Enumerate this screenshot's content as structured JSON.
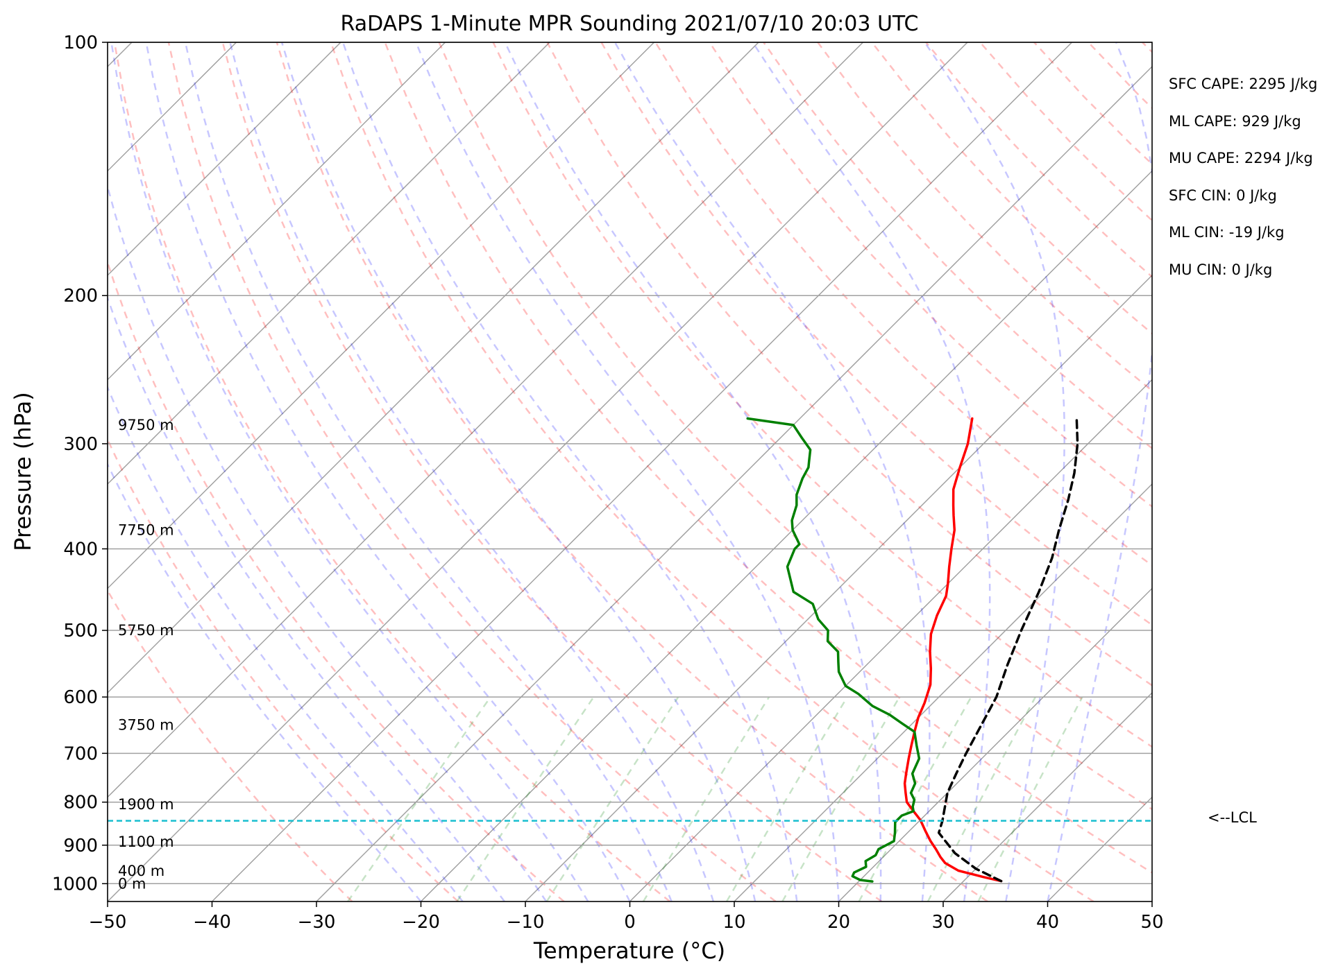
{
  "chart_data": {
    "type": "line",
    "title": "RaDAPS 1-Minute MPR Sounding 2021/07/10 20:03 UTC",
    "xlabel": "Temperature (°C)",
    "ylabel": "Pressure (hPa)",
    "xlim": [
      -50,
      50
    ],
    "ylim": [
      1050,
      100
    ],
    "y_scale": "log",
    "skew": "skew-T log-p",
    "grid": true,
    "x_ticks": [
      -50,
      -40,
      -30,
      -20,
      -10,
      0,
      10,
      20,
      30,
      40,
      50
    ],
    "x_tick_labels": [
      "−50",
      "−40",
      "−30",
      "−20",
      "−10",
      "0",
      "10",
      "20",
      "30",
      "40",
      "50"
    ],
    "y_ticks": [
      100,
      200,
      300,
      400,
      500,
      600,
      700,
      800,
      900,
      1000
    ],
    "y_tick_labels": [
      "100",
      "200",
      "300",
      "400",
      "500",
      "600",
      "700",
      "800",
      "900",
      "1000"
    ],
    "colors": {
      "temperature": "#ff0000",
      "dewpoint": "#008000",
      "parcel": "#000000",
      "lcl": "#17becf",
      "dry_adiabat": "#ff0000",
      "moist_adiabat": "#0000ff",
      "mixing_ratio": "#008000",
      "isotherm": "#808080"
    },
    "series": [
      {
        "key": "temperature",
        "x": [
          33.6,
          31.5,
          28.5,
          26.5,
          25.5,
          24.3,
          23.0,
          21.5,
          20.0,
          18.5,
          17.0,
          16.0,
          15.0,
          14.2,
          13.0,
          12.0,
          11.0,
          10.0,
          9.2,
          8.0,
          6.5,
          4.8,
          3.2,
          2.0,
          1.0,
          0.0,
          -1.5,
          -3.0,
          -4.5,
          -6.0,
          -7.0,
          -8.5,
          -10.0,
          -11.5,
          -13.5
        ],
        "y": [
          993,
          982,
          965,
          945,
          930,
          910,
          890,
          865,
          840,
          820,
          800,
          780,
          760,
          740,
          710,
          685,
          660,
          635,
          610,
          580,
          555,
          530,
          505,
          480,
          455,
          440,
          420,
          400,
          380,
          365,
          355,
          340,
          320,
          300,
          280
        ]
      },
      {
        "key": "dewpoint",
        "x": [
          21.3,
          20.0,
          18.9,
          18.7,
          19.3,
          18.7,
          19.1,
          18.8,
          19.5,
          18.8,
          17.8,
          17.8,
          18.5,
          18.0,
          17.5,
          16.5,
          16.0,
          14.8,
          14.0,
          12.5,
          11.0,
          9.0,
          7.0,
          4.5,
          2.0,
          0.0,
          -2.0,
          -3.0,
          -4.0,
          -6.0,
          -7.0,
          -9.0,
          -11.0,
          -14.0,
          -17.0,
          -18.0,
          -18.0,
          -20.0,
          -21.0,
          -22.0,
          -23.0,
          -24.0,
          -24.5,
          -25.0,
          -26.0,
          -28.0,
          -30.0,
          -35.0
        ],
        "y": [
          994,
          990,
          980,
          970,
          955,
          940,
          925,
          910,
          890,
          870,
          845,
          830,
          820,
          810,
          795,
          780,
          760,
          740,
          710,
          685,
          660,
          645,
          630,
          615,
          595,
          582,
          560,
          545,
          530,
          515,
          500,
          485,
          465,
          450,
          420,
          400,
          395,
          380,
          370,
          355,
          345,
          330,
          320,
          315,
          305,
          295,
          285,
          280
        ]
      },
      {
        "key": "parcel",
        "x": [
          33.6,
          30.0,
          26.5,
          23.0,
          22.2,
          20.0,
          19.0,
          18.0,
          16.8,
          15.5,
          13.5,
          11.5,
          9.5,
          7.5,
          5.5,
          3.5,
          1.5,
          -1.0,
          -3.5
        ],
        "y": [
          993,
          960,
          920,
          870,
          842,
          780,
          740,
          700,
          650,
          600,
          550,
          500,
          450,
          410,
          380,
          350,
          325,
          300,
          280
        ]
      }
    ],
    "lcl": {
      "pressure": 842,
      "label": "<--LCL"
    },
    "height_labels": [
      {
        "text": "9750 m",
        "pressure": 285
      },
      {
        "text": "7750 m",
        "pressure": 380
      },
      {
        "text": "5750 m",
        "pressure": 500
      },
      {
        "text": "3750 m",
        "pressure": 648
      },
      {
        "text": "1900 m",
        "pressure": 805
      },
      {
        "text": "1100 m",
        "pressure": 892
      },
      {
        "text": "400 m",
        "pressure": 966
      },
      {
        "text": "0 m",
        "pressure": 1000
      }
    ],
    "annotations": [
      "SFC CAPE: 2295 J/kg",
      "ML CAPE: 929 J/kg",
      "MU CAPE: 2294 J/kg",
      "SFC CIN: 0 J/kg",
      "ML CIN: -19 J/kg",
      "MU CIN: 0 J/kg"
    ]
  }
}
